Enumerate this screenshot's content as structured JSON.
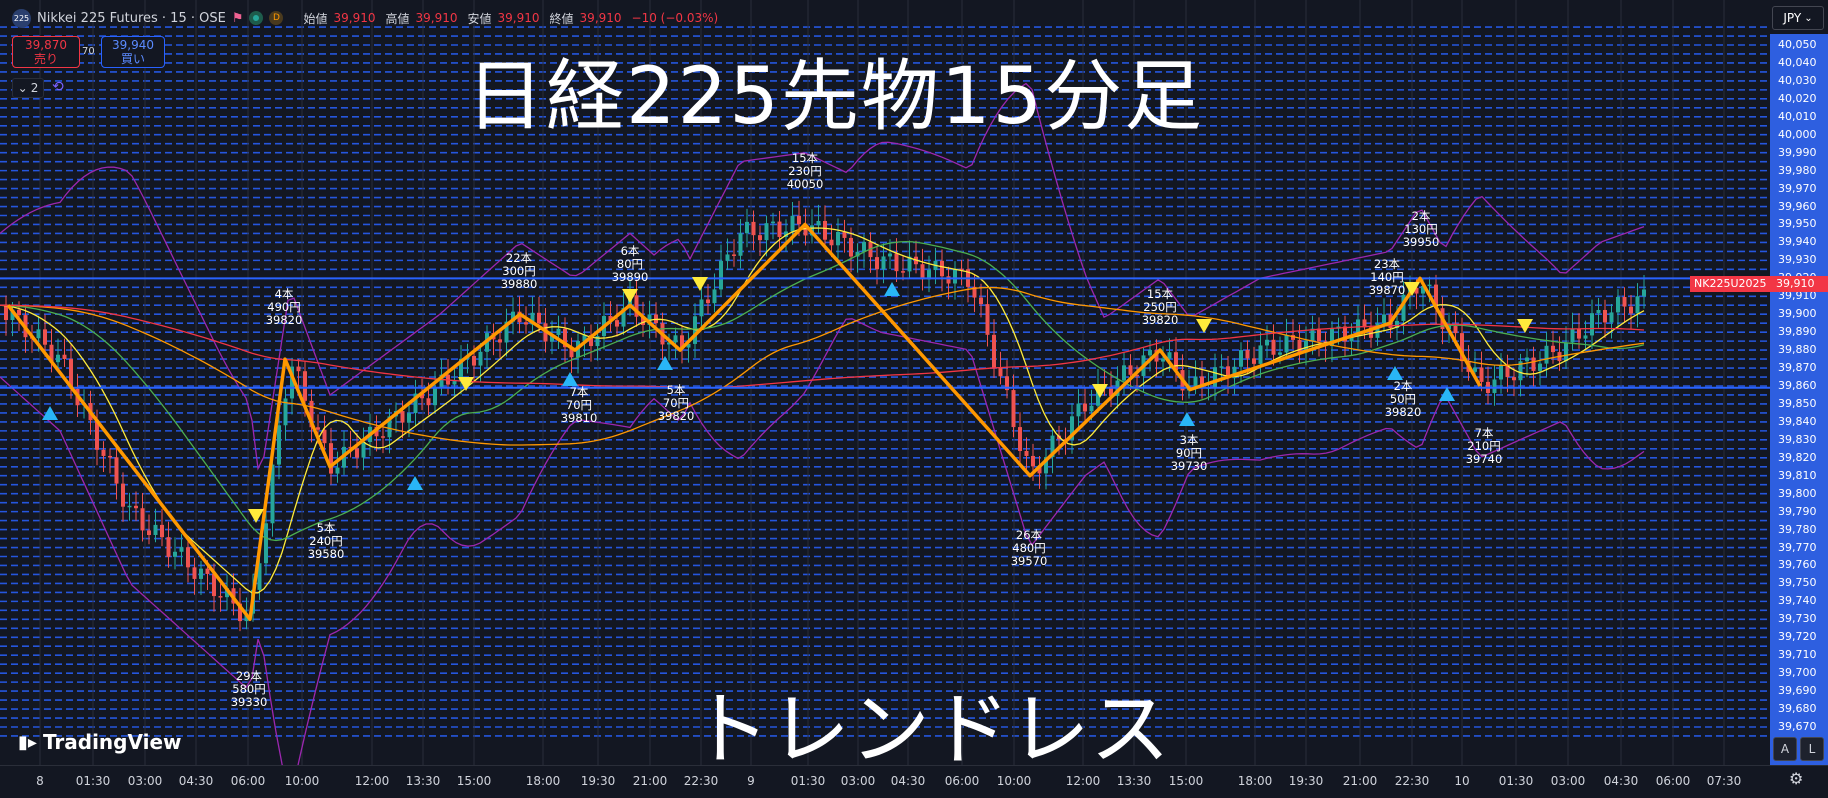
{
  "header": {
    "symbol_badge": "225",
    "symbol_title": "Nikkei 225 Futures · 15 · OSE",
    "d_badge": "D",
    "ohlc": [
      {
        "label": "始値",
        "value": "39,910"
      },
      {
        "label": "高値",
        "value": "39,910"
      },
      {
        "label": "安値",
        "value": "39,910"
      },
      {
        "label": "終値",
        "value": "39,910"
      }
    ],
    "change": "−10 (−0.03%)"
  },
  "trade": {
    "sell_price": "39,870",
    "sell_label": "売り",
    "spread": "70",
    "buy_price": "39,940",
    "buy_label": "買い"
  },
  "indicator_toggle": "2",
  "overlay": {
    "title": "日経225先物15分足",
    "subtitle": "トレンドレス"
  },
  "currency": "JPY",
  "symbol_tag": "NK225U2025",
  "last_price": "39,910",
  "logo_text": "TradingView",
  "scale_buttons": [
    "A",
    "L"
  ],
  "colors": {
    "zigzag": "#ff9800",
    "yellow_ma": "#ffeb3b",
    "green_ma": "#4caf50",
    "orange_ma": "#ff9800",
    "red_ma": "#f23645",
    "bollinger": "#9c27b0",
    "up_candle": "#26a69a",
    "down_candle": "#ef5350",
    "grid_line": "#2962ff",
    "sell": "#f23645",
    "buy": "#2962ff"
  },
  "chart_data": {
    "type": "line",
    "ylim": [
      39670,
      40055
    ],
    "y_ticks": [
      40050,
      40040,
      40030,
      40020,
      40010,
      40000,
      39990,
      39980,
      39970,
      39960,
      39950,
      39940,
      39930,
      39920,
      39910,
      39900,
      39890,
      39880,
      39870,
      39860,
      39850,
      39840,
      39830,
      39820,
      39810,
      39800,
      39790,
      39780,
      39770,
      39760,
      39750,
      39740,
      39730,
      39720,
      39710,
      39700,
      39690,
      39680,
      39670
    ],
    "x_ticks": [
      "8",
      "01:30",
      "03:00",
      "04:30",
      "06:00",
      "10:00",
      "12:00",
      "13:30",
      "15:00",
      "18:00",
      "19:30",
      "21:00",
      "22:30",
      "9",
      "01:30",
      "03:00",
      "04:30",
      "06:00",
      "10:00",
      "12:00",
      "13:30",
      "15:00",
      "18:00",
      "19:30",
      "21:00",
      "22:30",
      "10",
      "01:30",
      "03:00",
      "04:30",
      "06:00",
      "07:30"
    ],
    "horizontal_lines": [
      39920,
      39859
    ],
    "zigzag": {
      "points": [
        {
          "x": "8",
          "y": 39905
        },
        {
          "x": "06:00",
          "y": 39730
        },
        {
          "x": "10:00",
          "y": 39875
        },
        {
          "x": "10:00+",
          "y": 39815
        },
        {
          "x": "18:00",
          "y": 39900
        },
        {
          "x": "19:30",
          "y": 39880
        },
        {
          "x": "21:00",
          "y": 39905
        },
        {
          "x": "22:30",
          "y": 39880
        },
        {
          "x": "01:30",
          "y": 39950
        },
        {
          "x": "10:00",
          "y": 39810
        },
        {
          "x": "13:30",
          "y": 39880
        },
        {
          "x": "15:00",
          "y": 39858
        },
        {
          "x": "21:00",
          "y": 39895
        },
        {
          "x": "22:30",
          "y": 39920
        },
        {
          "x": "01:30",
          "y": 39860
        }
      ]
    },
    "annotations": [
      {
        "lines": [
          "29本",
          "580円",
          "39330"
        ]
      },
      {
        "lines": [
          "4本",
          "490円",
          "39820"
        ]
      },
      {
        "lines": [
          "5本",
          "240円",
          "39580"
        ]
      },
      {
        "lines": [
          "22本",
          "300円",
          "39880"
        ]
      },
      {
        "lines": [
          "7本",
          "70円",
          "39810"
        ]
      },
      {
        "lines": [
          "6本",
          "80円",
          "39890"
        ]
      },
      {
        "lines": [
          "5本",
          "70円",
          "39820"
        ]
      },
      {
        "lines": [
          "15本",
          "230円",
          "40050"
        ]
      },
      {
        "lines": [
          "26本",
          "480円",
          "39570"
        ]
      },
      {
        "lines": [
          "15本",
          "250円",
          "39820"
        ]
      },
      {
        "lines": [
          "3本",
          "90円",
          "39730"
        ]
      },
      {
        "lines": [
          "23本",
          "140円",
          "39870"
        ]
      },
      {
        "lines": [
          "2本",
          "130円",
          "39950"
        ]
      },
      {
        "lines": [
          "2本",
          "50円",
          "39820"
        ]
      },
      {
        "lines": [
          "7本",
          "210円",
          "39740"
        ]
      }
    ]
  }
}
